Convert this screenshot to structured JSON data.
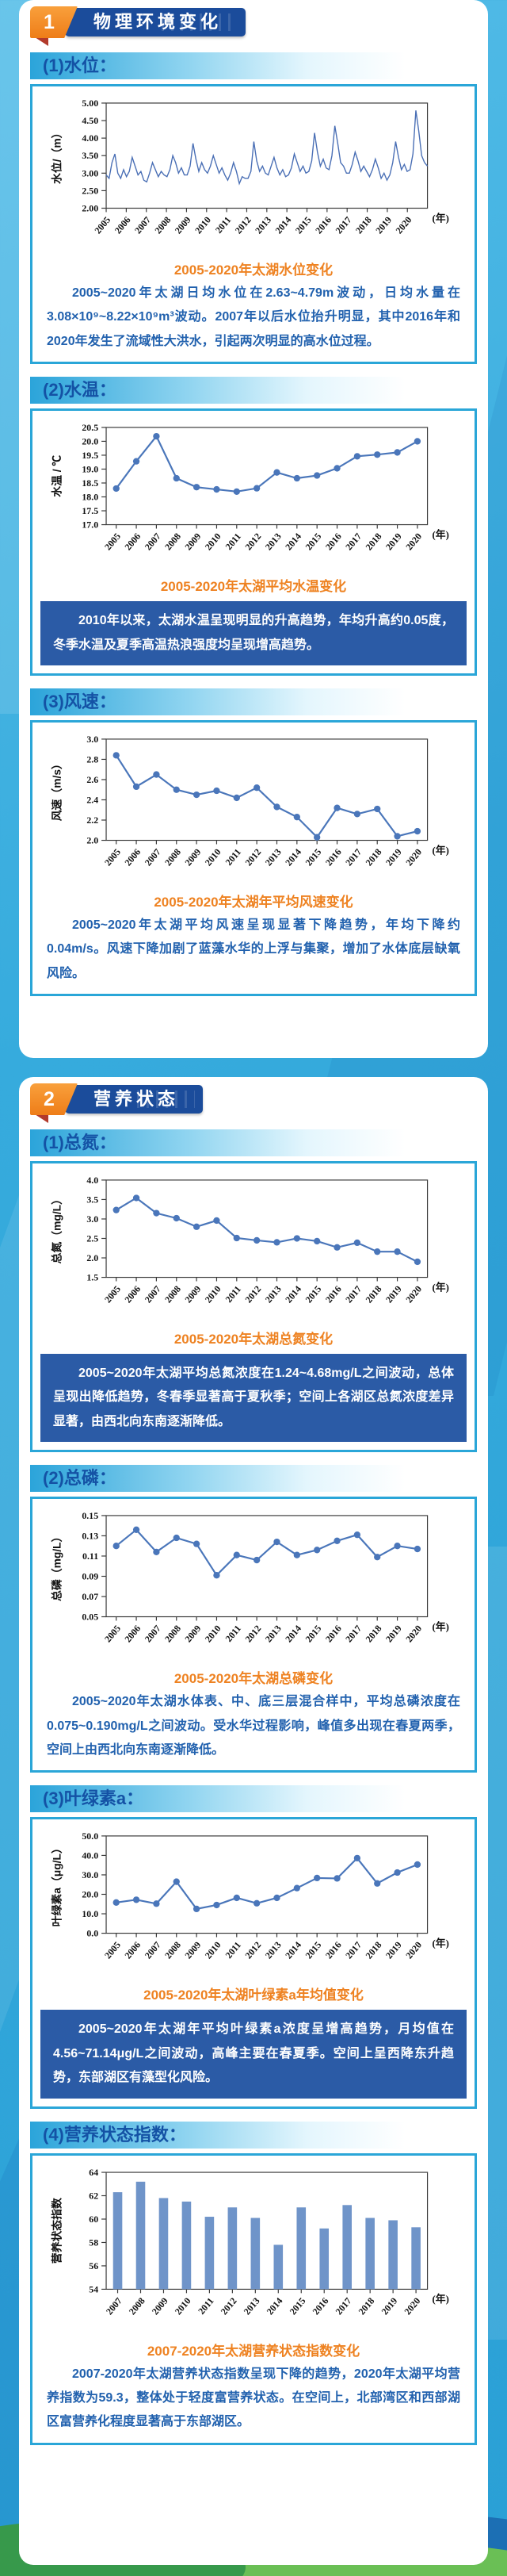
{
  "colors": {
    "page_bg": "#35a9dd",
    "accent_orange": "#ee7d18",
    "banner_blue": "#1b4c9b",
    "heading_blue": "#1452a5",
    "caption_orange": "#ee8221",
    "body_text_blue": "#2161ae",
    "highlight_box_blue": "#2b5ba6",
    "panel_border_teal": "#2aa6d8",
    "chart_line_blue": "#4a76ba",
    "chart_bar_blue": "#6f94c9"
  },
  "parts": [
    {
      "badge": "1",
      "title": "物理环境变化",
      "sections": [
        {
          "heading": "(1)水位：",
          "caption": "2005-2020年太湖水位变化",
          "paragraph": "2005~2020年太湖日均水位在2.63~4.79m波动，日均水量在3.08×10⁹~8.22×10⁹m³波动。2007年以后水位抬升明显，其中2016年和2020年发生了流域性大洪水，引起两次明显的高水位过程。"
        },
        {
          "heading": "(2)水温：",
          "caption": "2005-2020年太湖平均水温变化",
          "paragraph": "2010年以来，太湖水温呈现明显的升高趋势，年均升高约0.05度，冬季水温及夏季高温热浪强度均呈现增高趋势。"
        },
        {
          "heading": "(3)风速：",
          "caption": "2005-2020年太湖年平均风速变化",
          "paragraph": "2005~2020年太湖平均风速呈现显著下降趋势，年均下降约0.04m/s。风速下降加剧了蓝藻水华的上浮与集聚，增加了水体底层缺氧风险。"
        }
      ]
    },
    {
      "badge": "2",
      "title": "营养状态",
      "sections": [
        {
          "heading": "(1)总氮：",
          "caption": "2005-2020年太湖总氮变化",
          "paragraph": "2005~2020年太湖平均总氮浓度在1.24~4.68mg/L之间波动，总体呈现出降低趋势，冬春季显著高于夏秋季；空间上各湖区总氮浓度差异显著，由西北向东南逐渐降低。"
        },
        {
          "heading": "(2)总磷：",
          "caption": "2005-2020年太湖总磷变化",
          "paragraph": "2005~2020年太湖水体表、中、底三层混合样中，平均总磷浓度在0.075~0.190mg/L之间波动。受水华过程影响，峰值多出现在春夏两季，空间上由西北向东南逐渐降低。"
        },
        {
          "heading": "(3)叶绿素a：",
          "caption": "2005-2020年太湖叶绿素a年均值变化",
          "paragraph": "2005~2020年太湖年平均叶绿素a浓度呈增高趋势，月均值在4.56~71.14μg/L之间波动，高峰主要在春夏季。空间上呈西降东升趋势，东部湖区有藻型化风险。"
        },
        {
          "heading": "(4)营养状态指数：",
          "caption": "2007-2020年太湖营养状态指数变化",
          "paragraph": "2007-2020年太湖营养状态指数呈现下降的趋势，2020年太湖平均营养指数为59.3，整体处于轻度富营养状态。在空间上，北部湾区和西部湖区富营养化程度显著高于东部湖区。"
        }
      ]
    }
  ],
  "chart_data": [
    {
      "type": "line",
      "variant": "daily",
      "title": "2005-2020年太湖水位变化",
      "ylabel": "水位/（m）",
      "xunit": "(年)",
      "categories": [
        "2005",
        "2006",
        "2007",
        "2008",
        "2009",
        "2010",
        "2011",
        "2012",
        "2013",
        "2014",
        "2015",
        "2016",
        "2017",
        "2018",
        "2019",
        "2020"
      ],
      "ylim": [
        2.0,
        5.0
      ],
      "ytick": 0.5,
      "ydecimals": 2,
      "points_per_year": 7,
      "values": [
        2.95,
        2.85,
        3.3,
        3.55,
        3.0,
        2.85,
        3.1,
        2.9,
        3.05,
        3.45,
        3.2,
        2.95,
        3.05,
        2.8,
        2.75,
        3.0,
        3.3,
        3.1,
        2.9,
        3.05,
        2.95,
        2.9,
        3.1,
        3.5,
        3.3,
        3.0,
        3.15,
        2.95,
        2.95,
        3.2,
        3.85,
        3.4,
        3.05,
        3.3,
        3.1,
        3.0,
        3.2,
        3.5,
        3.25,
        3.0,
        3.15,
        2.95,
        2.8,
        3.0,
        3.3,
        3.05,
        2.7,
        2.9,
        2.85,
        2.85,
        3.05,
        3.9,
        3.35,
        3.05,
        3.2,
        3.0,
        2.95,
        3.2,
        3.45,
        3.15,
        2.95,
        3.1,
        2.9,
        2.95,
        3.15,
        3.55,
        3.3,
        3.05,
        3.2,
        3.0,
        3.05,
        3.35,
        4.15,
        3.6,
        3.2,
        3.4,
        3.15,
        3.1,
        3.5,
        4.35,
        3.85,
        3.3,
        3.2,
        3.0,
        3.0,
        3.25,
        3.6,
        3.35,
        3.05,
        3.2,
        3.05,
        2.9,
        3.1,
        3.4,
        3.15,
        2.85,
        3.0,
        2.8,
        2.95,
        3.3,
        3.9,
        3.45,
        3.1,
        3.25,
        3.05,
        3.1,
        3.55,
        4.79,
        4.2,
        3.5,
        3.3,
        3.2
      ],
      "line_color": "#4a6fb5"
    },
    {
      "type": "line",
      "title": "2005-2020年太湖平均水温变化",
      "ylabel": "水温 / ℃",
      "xunit": "(年)",
      "categories": [
        "2005",
        "2006",
        "2007",
        "2008",
        "2009",
        "2010",
        "2011",
        "2012",
        "2013",
        "2014",
        "2015",
        "2016",
        "2017",
        "2018",
        "2019",
        "2020"
      ],
      "ylim": [
        17.0,
        20.5
      ],
      "ytick": 0.5,
      "ydecimals": 1,
      "values": [
        18.3,
        19.28,
        20.18,
        18.67,
        18.35,
        18.27,
        18.19,
        18.31,
        18.88,
        18.67,
        18.77,
        19.03,
        19.46,
        19.52,
        19.6,
        20.0
      ],
      "line_color": "#4a76ba"
    },
    {
      "type": "line",
      "title": "2005-2020年太湖年平均风速变化",
      "ylabel": "风速（m/s）",
      "xunit": "(年)",
      "categories": [
        "2005",
        "2006",
        "2007",
        "2008",
        "2009",
        "2010",
        "2011",
        "2012",
        "2013",
        "2014",
        "2015",
        "2016",
        "2017",
        "2018",
        "2019",
        "2020"
      ],
      "ylim": [
        2.0,
        3.0
      ],
      "ytick": 0.2,
      "ydecimals": 1,
      "values": [
        2.84,
        2.53,
        2.65,
        2.5,
        2.45,
        2.49,
        2.42,
        2.52,
        2.33,
        2.23,
        2.03,
        2.32,
        2.26,
        2.31,
        2.04,
        2.09
      ],
      "line_color": "#4a76ba"
    },
    {
      "type": "line",
      "title": "2005-2020年太湖总氮变化",
      "ylabel": "总氮（mg/L）",
      "xunit": "(年)",
      "categories": [
        "2005",
        "2006",
        "2007",
        "2008",
        "2009",
        "2010",
        "2011",
        "2012",
        "2013",
        "2014",
        "2015",
        "2016",
        "2017",
        "2018",
        "2019",
        "2020"
      ],
      "ylim": [
        1.5,
        4.0
      ],
      "ytick": 0.5,
      "ydecimals": 1,
      "values": [
        3.23,
        3.54,
        3.15,
        3.02,
        2.8,
        2.96,
        2.51,
        2.45,
        2.4,
        2.5,
        2.43,
        2.27,
        2.39,
        2.16,
        2.16,
        1.9
      ],
      "line_color": "#4a76ba"
    },
    {
      "type": "line",
      "title": "2005-2020年太湖总磷变化",
      "ylabel": "总磷（mg/L）",
      "xunit": "(年)",
      "categories": [
        "2005",
        "2006",
        "2007",
        "2008",
        "2009",
        "2010",
        "2011",
        "2012",
        "2013",
        "2014",
        "2015",
        "2016",
        "2017",
        "2018",
        "2019",
        "2020"
      ],
      "ylim": [
        0.05,
        0.15
      ],
      "ytick": 0.02,
      "ydecimals": 2,
      "values": [
        0.12,
        0.136,
        0.114,
        0.128,
        0.122,
        0.091,
        0.111,
        0.106,
        0.124,
        0.111,
        0.116,
        0.125,
        0.131,
        0.109,
        0.12,
        0.117
      ],
      "line_color": "#4a76ba"
    },
    {
      "type": "line",
      "title": "2005-2020年太湖叶绿素a年均值变化",
      "ylabel": "叶绿素a（μg/L）",
      "xunit": "(年)",
      "categories": [
        "2005",
        "2006",
        "2007",
        "2008",
        "2009",
        "2010",
        "2011",
        "2012",
        "2013",
        "2014",
        "2015",
        "2016",
        "2017",
        "2018",
        "2019",
        "2020"
      ],
      "ylim": [
        0.0,
        50.0
      ],
      "ytick": 10,
      "ydecimals": 1,
      "values": [
        15.8,
        17.2,
        15.2,
        26.5,
        12.5,
        14.5,
        18.2,
        15.4,
        18.2,
        23.2,
        28.4,
        28.2,
        38.6,
        25.6,
        31.2,
        35.3
      ],
      "line_color": "#4a76ba"
    },
    {
      "type": "bar",
      "title": "2007-2020年太湖营养状态指数变化",
      "ylabel": "营养状态指数",
      "xunit": "(年)",
      "categories": [
        "2007",
        "2008",
        "2009",
        "2010",
        "2011",
        "2012",
        "2013",
        "2014",
        "2015",
        "2016",
        "2017",
        "2018",
        "2019",
        "2020"
      ],
      "ylim": [
        54,
        64
      ],
      "ytick": 2,
      "ydecimals": 0,
      "values": [
        62.3,
        63.2,
        61.8,
        61.5,
        60.2,
        61.0,
        60.1,
        57.8,
        61.0,
        59.2,
        61.2,
        60.1,
        59.9,
        59.3
      ],
      "bar_color": "#6f94c9"
    }
  ]
}
